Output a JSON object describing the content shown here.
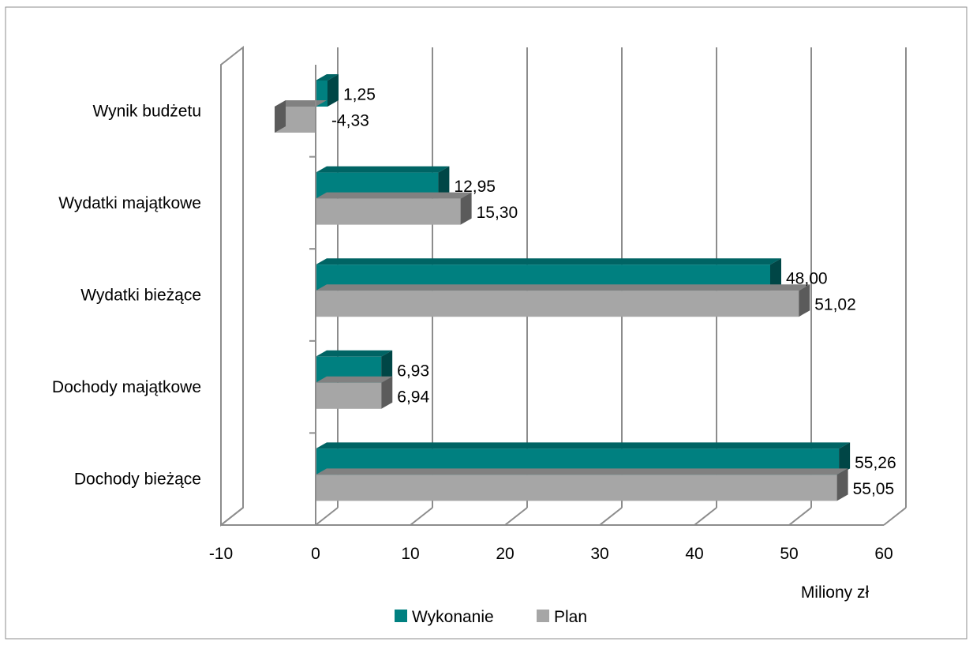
{
  "chart_data": {
    "type": "bar",
    "orientation": "horizontal",
    "style": "3d-clustered",
    "categories": [
      "Wynik budżetu",
      "Wydatki majątkowe",
      "Wydatki bieżące",
      "Dochody majątkowe",
      "Dochody bieżące"
    ],
    "series": [
      {
        "name": "Wykonanie",
        "color": "#008080",
        "values": [
          1.25,
          12.95,
          48.0,
          6.93,
          55.26
        ],
        "labels": [
          "1,25",
          "12,95",
          "48,00",
          "6,93",
          "55,26"
        ]
      },
      {
        "name": "Plan",
        "color": "#a6a6a6",
        "values": [
          -4.33,
          15.3,
          51.02,
          6.94,
          55.05
        ],
        "labels": [
          "-4,33",
          "15,30",
          "51,02",
          "6,94",
          "55,05"
        ]
      }
    ],
    "x_ticks": [
      "-10",
      "0",
      "10",
      "20",
      "30",
      "40",
      "50",
      "60"
    ],
    "xlim": [
      -10,
      60
    ],
    "xlabel": "Miliony zł",
    "grid": true,
    "legend_position": "bottom"
  }
}
